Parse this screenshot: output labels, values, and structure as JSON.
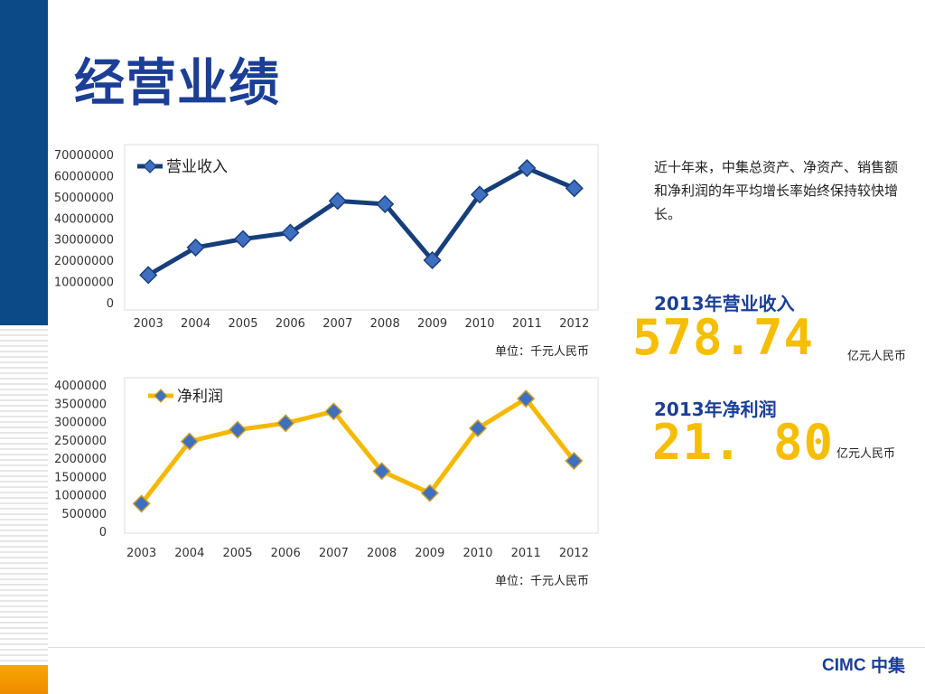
{
  "slide": {
    "title": "经营业绩",
    "description": "近十年来，中集总资产、净资产、销售额和净利润的年平均增长率始终保持较快增长。",
    "logo_text": "CIMC中集",
    "colors": {
      "brand_blue": "#0b4a86",
      "title_blue": "#1b3f95",
      "accent_gold": "#f6be00",
      "accent_orange": "#f5a800"
    }
  },
  "kpis": [
    {
      "label": "2013年营业收入",
      "value": "578.74",
      "unit": "亿元人民币"
    },
    {
      "label": "2013年净利润",
      "value": "21. 80",
      "unit": "亿元人民币"
    }
  ],
  "chart_data": [
    {
      "type": "line",
      "categories": [
        "2003",
        "2004",
        "2005",
        "2006",
        "2007",
        "2008",
        "2009",
        "2010",
        "2011",
        "2012"
      ],
      "series": [
        {
          "name": "营业收入",
          "values": [
            13500000,
            26500000,
            30500000,
            33500000,
            48500000,
            47000000,
            20500000,
            51500000,
            64000000,
            54500000
          ],
          "color": "#163e7a"
        }
      ],
      "yticks": [
        "0",
        "10000000",
        "20000000",
        "30000000",
        "40000000",
        "50000000",
        "60000000",
        "70000000"
      ],
      "ylim": [
        0,
        70000000
      ],
      "unit_note": "单位：千元人民币",
      "grid": false,
      "legend_position": "top-left"
    },
    {
      "type": "line",
      "categories": [
        "2003",
        "2004",
        "2005",
        "2006",
        "2007",
        "2008",
        "2009",
        "2010",
        "2011",
        "2012"
      ],
      "series": [
        {
          "name": "净利润",
          "values": [
            780000,
            2480000,
            2800000,
            2980000,
            3300000,
            1670000,
            1070000,
            2840000,
            3650000,
            1950000
          ],
          "color": "#f5b800"
        }
      ],
      "yticks": [
        "0",
        "500000",
        "1000000",
        "1500000",
        "2000000",
        "2500000",
        "3000000",
        "3500000",
        "4000000"
      ],
      "ylim": [
        0,
        4000000
      ],
      "unit_note": "单位：千元人民币",
      "grid": false,
      "legend_position": "top-left"
    }
  ]
}
